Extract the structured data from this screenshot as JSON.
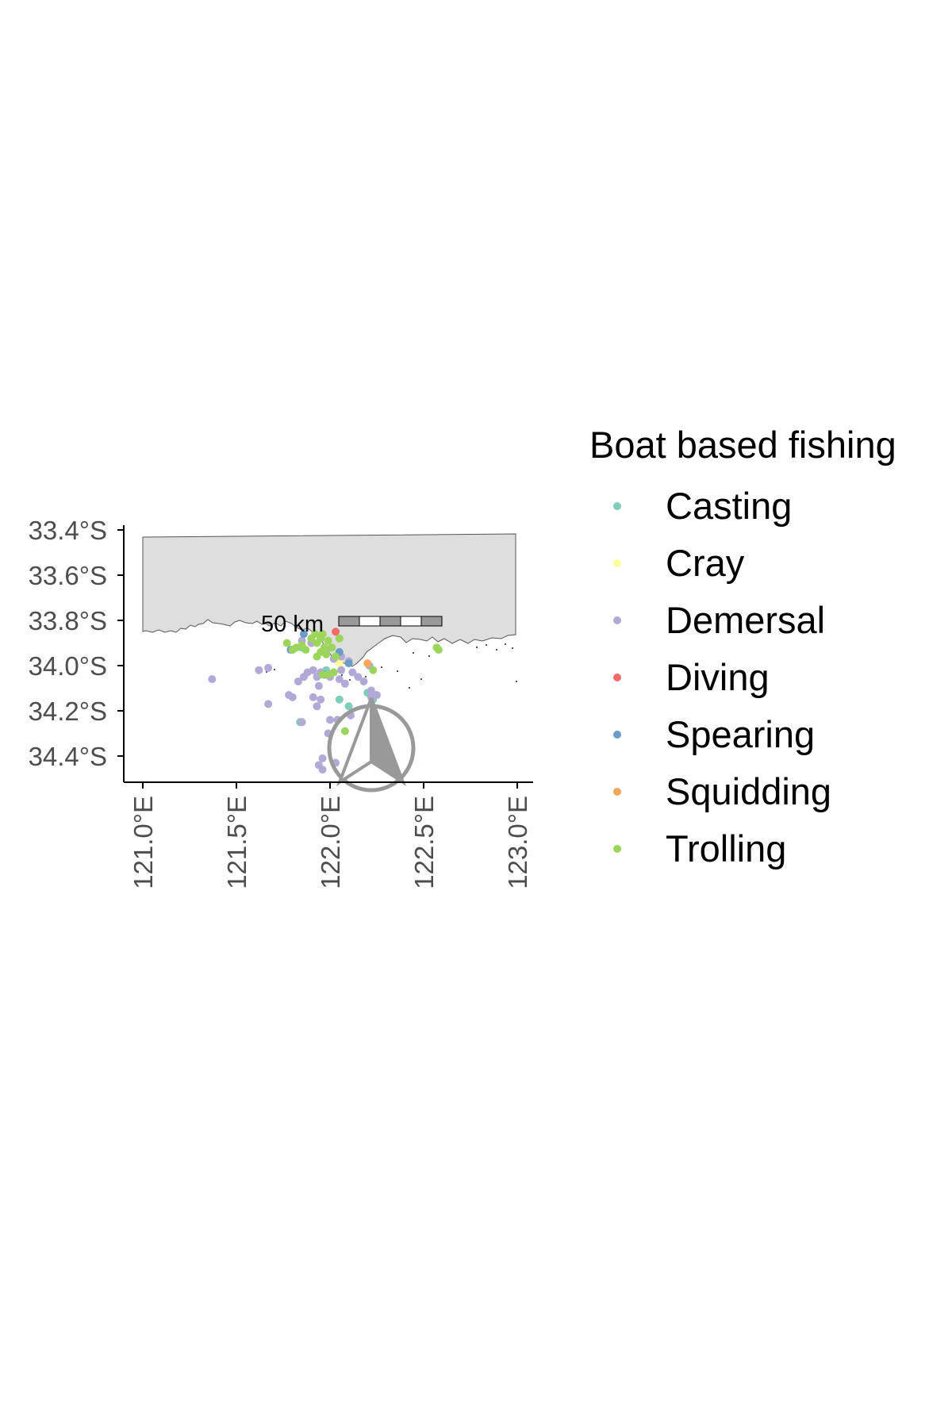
{
  "chart_data": {
    "type": "scatter",
    "legend_title": "Boat based fishing",
    "legend_position": "right",
    "xlim": [
      120.9,
      123.1
    ],
    "ylim": [
      -34.55,
      -33.37
    ],
    "x_ticks": [
      121.0,
      121.5,
      122.0,
      122.5,
      123.0
    ],
    "x_tick_labels": [
      "121.0°E",
      "121.5°E",
      "122.0°E",
      "122.5°E",
      "123.0°E"
    ],
    "y_ticks": [
      -33.4,
      -33.6,
      -33.8,
      -34.0,
      -34.2,
      -34.4
    ],
    "y_tick_labels": [
      "33.4°S",
      "33.6°S",
      "33.8°S",
      "34.0°S",
      "34.2°S",
      "34.4°S"
    ],
    "scale_bar_label": "50 km",
    "colors": {
      "Casting": "#7fcdbb",
      "Cray": "#ffff99",
      "Demersal": "#b3a9d6",
      "Diving": "#f26b6b",
      "Spearing": "#6b9cc9",
      "Squidding": "#f7a65a",
      "Trolling": "#9bd65b"
    },
    "series": [
      {
        "name": "Casting",
        "points": [
          [
            121.85,
            -33.92
          ],
          [
            121.9,
            -33.9
          ],
          [
            122.05,
            -34.15
          ],
          [
            122.1,
            -34.18
          ],
          [
            122.2,
            -34.12
          ],
          [
            121.98,
            -34.02
          ],
          [
            122.23,
            -34.15
          ],
          [
            121.84,
            -34.25
          ]
        ]
      },
      {
        "name": "Cray",
        "points": [
          [
            122.05,
            -33.99
          ]
        ]
      },
      {
        "name": "Demersal",
        "points": [
          [
            121.37,
            -34.06
          ],
          [
            121.62,
            -34.02
          ],
          [
            121.67,
            -34.01
          ],
          [
            121.78,
            -34.13
          ],
          [
            121.8,
            -34.14
          ],
          [
            121.67,
            -34.17
          ],
          [
            121.83,
            -34.07
          ],
          [
            121.86,
            -34.05
          ],
          [
            121.88,
            -34.03
          ],
          [
            121.91,
            -34.02
          ],
          [
            121.93,
            -34.05
          ],
          [
            121.95,
            -34.03
          ],
          [
            121.97,
            -34.04
          ],
          [
            121.94,
            -34.09
          ],
          [
            121.91,
            -34.14
          ],
          [
            121.95,
            -34.15
          ],
          [
            121.93,
            -34.18
          ],
          [
            122.0,
            -34.05
          ],
          [
            122.05,
            -34.06
          ],
          [
            122.08,
            -34.08
          ],
          [
            122.12,
            -34.03
          ],
          [
            122.15,
            -34.05
          ],
          [
            122.18,
            -34.07
          ],
          [
            122.06,
            -34.02
          ],
          [
            122.02,
            -33.97
          ],
          [
            122.06,
            -33.96
          ],
          [
            122.1,
            -33.98
          ],
          [
            122.22,
            -34.14
          ],
          [
            122.25,
            -34.13
          ],
          [
            122.22,
            -34.11
          ],
          [
            122.04,
            -34.24
          ],
          [
            122.0,
            -34.24
          ],
          [
            122.11,
            -34.22
          ],
          [
            121.96,
            -34.41
          ],
          [
            121.94,
            -34.44
          ],
          [
            121.96,
            -34.46
          ],
          [
            122.03,
            -34.43
          ],
          [
            121.99,
            -34.3
          ],
          [
            122.24,
            -34.24
          ],
          [
            122.21,
            -34.0
          ],
          [
            121.9,
            -33.9
          ],
          [
            121.98,
            -33.93
          ],
          [
            121.85,
            -34.25
          ],
          [
            121.85,
            -33.89
          ]
        ]
      },
      {
        "name": "Diving",
        "points": [
          [
            122.03,
            -33.85
          ]
        ]
      },
      {
        "name": "Spearing",
        "points": [
          [
            121.97,
            -34.04
          ],
          [
            122.1,
            -33.99
          ],
          [
            122.05,
            -33.94
          ],
          [
            121.86,
            -33.86
          ],
          [
            121.79,
            -33.93
          ]
        ]
      },
      {
        "name": "Squidding",
        "points": [
          [
            122.2,
            -33.99
          ]
        ]
      },
      {
        "name": "Trolling",
        "points": [
          [
            121.77,
            -33.9
          ],
          [
            121.8,
            -33.93
          ],
          [
            121.82,
            -33.92
          ],
          [
            121.85,
            -33.91
          ],
          [
            121.87,
            -33.93
          ],
          [
            121.9,
            -33.88
          ],
          [
            121.92,
            -33.86
          ],
          [
            121.93,
            -33.9
          ],
          [
            121.95,
            -33.88
          ],
          [
            121.97,
            -33.92
          ],
          [
            121.96,
            -33.86
          ],
          [
            121.99,
            -33.89
          ],
          [
            122.01,
            -33.92
          ],
          [
            121.98,
            -33.95
          ],
          [
            122.03,
            -33.96
          ],
          [
            121.95,
            -33.94
          ],
          [
            121.93,
            -33.96
          ],
          [
            122.05,
            -33.88
          ],
          [
            121.96,
            -34.04
          ],
          [
            121.99,
            -34.04
          ],
          [
            122.02,
            -34.03
          ],
          [
            122.23,
            -34.02
          ],
          [
            122.08,
            -34.29
          ],
          [
            122.57,
            -33.92
          ],
          [
            122.58,
            -33.93
          ]
        ]
      }
    ]
  }
}
